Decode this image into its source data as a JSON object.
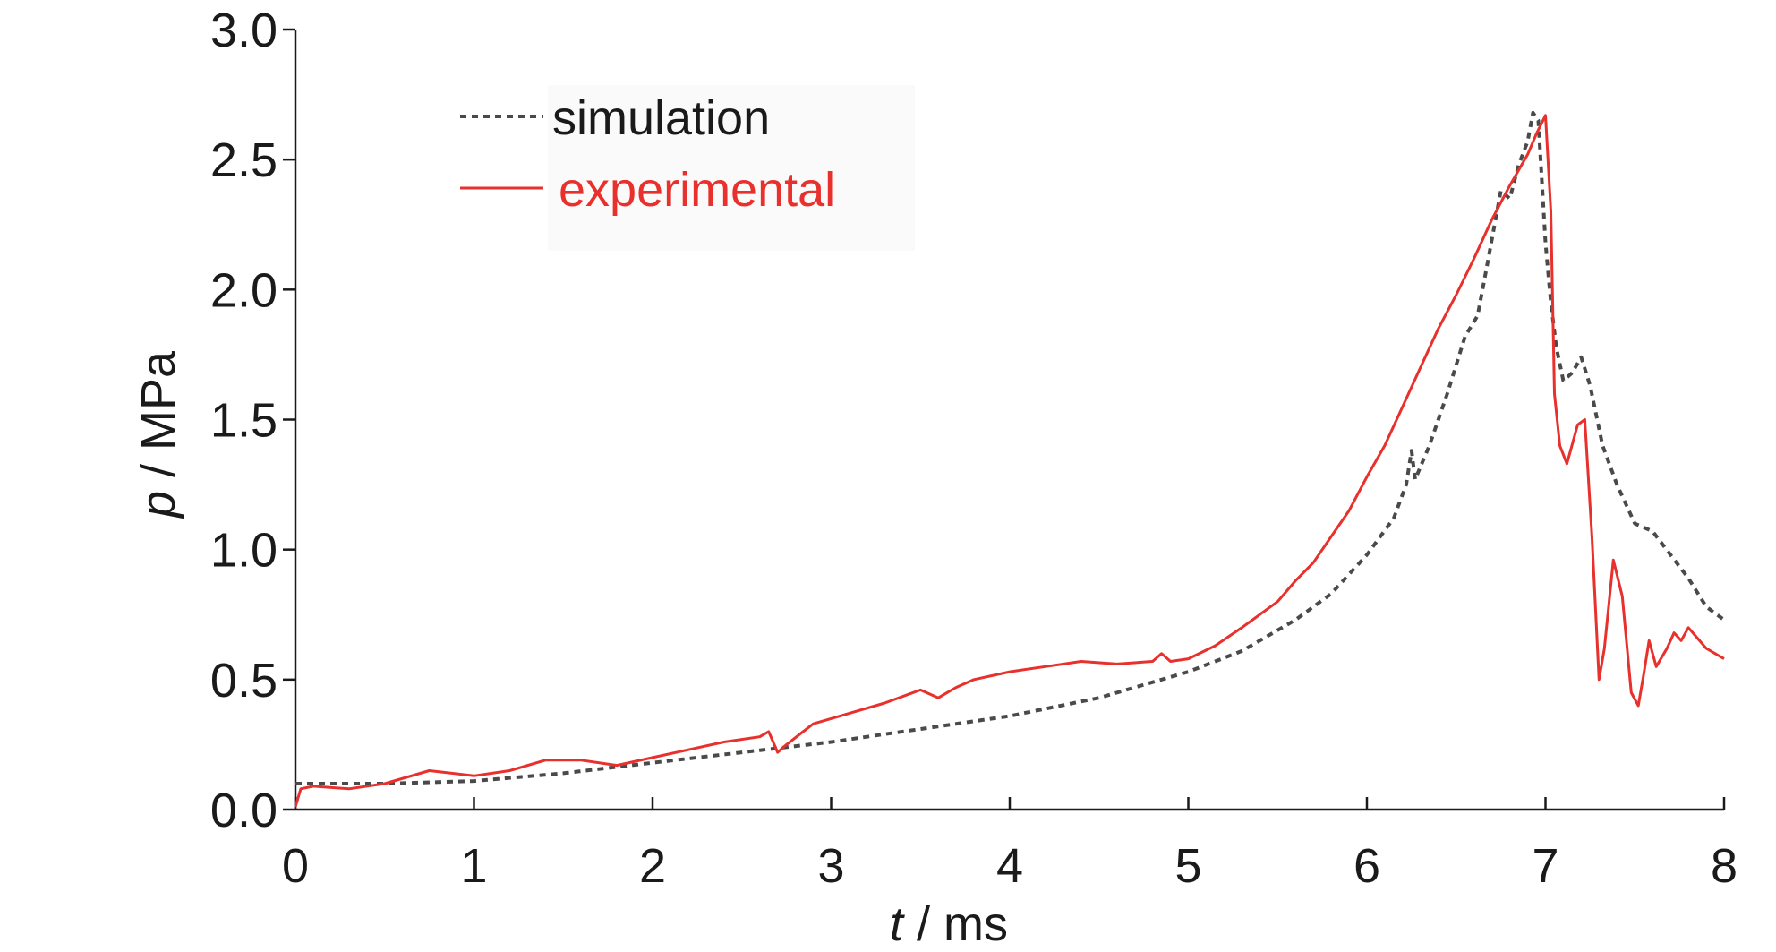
{
  "chart_data": {
    "type": "line",
    "xlabel": {
      "var": "t",
      "unit": " / ms"
    },
    "ylabel": {
      "var": "p",
      "unit": " / MPa"
    },
    "xlim": [
      0,
      8
    ],
    "ylim": [
      0,
      3
    ],
    "x_ticks": [
      "0",
      "1",
      "2",
      "3",
      "4",
      "5",
      "6",
      "7",
      "8"
    ],
    "y_ticks": [
      "0.0",
      "0.5",
      "1.0",
      "1.5",
      "2.0",
      "2.5",
      "3.0"
    ],
    "grid": false,
    "legend_position": "top-left",
    "series": [
      {
        "name": "simulation",
        "color": "#4a4a4a",
        "dash": "dotted",
        "points": [
          [
            0,
            0.1
          ],
          [
            0.5,
            0.1
          ],
          [
            1,
            0.11
          ],
          [
            1.5,
            0.14
          ],
          [
            2,
            0.18
          ],
          [
            2.5,
            0.22
          ],
          [
            3,
            0.26
          ],
          [
            3.5,
            0.31
          ],
          [
            4,
            0.36
          ],
          [
            4.5,
            0.43
          ],
          [
            5,
            0.53
          ],
          [
            5.3,
            0.61
          ],
          [
            5.6,
            0.73
          ],
          [
            5.8,
            0.83
          ],
          [
            6.0,
            0.98
          ],
          [
            6.15,
            1.12
          ],
          [
            6.22,
            1.25
          ],
          [
            6.25,
            1.38
          ],
          [
            6.27,
            1.27
          ],
          [
            6.35,
            1.4
          ],
          [
            6.45,
            1.6
          ],
          [
            6.55,
            1.82
          ],
          [
            6.62,
            1.9
          ],
          [
            6.68,
            2.12
          ],
          [
            6.75,
            2.38
          ],
          [
            6.8,
            2.35
          ],
          [
            6.85,
            2.48
          ],
          [
            6.9,
            2.57
          ],
          [
            6.93,
            2.68
          ],
          [
            6.96,
            2.65
          ],
          [
            7.0,
            2.18
          ],
          [
            7.03,
            1.95
          ],
          [
            7.06,
            1.78
          ],
          [
            7.1,
            1.65
          ],
          [
            7.15,
            1.68
          ],
          [
            7.2,
            1.74
          ],
          [
            7.25,
            1.63
          ],
          [
            7.32,
            1.4
          ],
          [
            7.4,
            1.25
          ],
          [
            7.5,
            1.1
          ],
          [
            7.6,
            1.07
          ],
          [
            7.7,
            0.98
          ],
          [
            7.8,
            0.89
          ],
          [
            7.9,
            0.78
          ],
          [
            8.0,
            0.73
          ]
        ]
      },
      {
        "name": "experimental",
        "color": "#e8302c",
        "dash": "solid",
        "points": [
          [
            0,
            0.01
          ],
          [
            0.03,
            0.08
          ],
          [
            0.1,
            0.09
          ],
          [
            0.3,
            0.08
          ],
          [
            0.5,
            0.1
          ],
          [
            0.75,
            0.15
          ],
          [
            1.0,
            0.13
          ],
          [
            1.2,
            0.15
          ],
          [
            1.4,
            0.19
          ],
          [
            1.6,
            0.19
          ],
          [
            1.8,
            0.17
          ],
          [
            2.0,
            0.2
          ],
          [
            2.2,
            0.23
          ],
          [
            2.4,
            0.26
          ],
          [
            2.6,
            0.28
          ],
          [
            2.65,
            0.3
          ],
          [
            2.7,
            0.22
          ],
          [
            2.75,
            0.25
          ],
          [
            2.9,
            0.33
          ],
          [
            3.1,
            0.37
          ],
          [
            3.3,
            0.41
          ],
          [
            3.5,
            0.46
          ],
          [
            3.6,
            0.43
          ],
          [
            3.7,
            0.47
          ],
          [
            3.8,
            0.5
          ],
          [
            4.0,
            0.53
          ],
          [
            4.2,
            0.55
          ],
          [
            4.4,
            0.57
          ],
          [
            4.6,
            0.56
          ],
          [
            4.8,
            0.57
          ],
          [
            4.85,
            0.6
          ],
          [
            4.9,
            0.57
          ],
          [
            5.0,
            0.58
          ],
          [
            5.15,
            0.63
          ],
          [
            5.3,
            0.7
          ],
          [
            5.5,
            0.8
          ],
          [
            5.6,
            0.88
          ],
          [
            5.7,
            0.95
          ],
          [
            5.8,
            1.05
          ],
          [
            5.9,
            1.15
          ],
          [
            6.0,
            1.28
          ],
          [
            6.1,
            1.4
          ],
          [
            6.2,
            1.55
          ],
          [
            6.3,
            1.7
          ],
          [
            6.4,
            1.85
          ],
          [
            6.5,
            1.98
          ],
          [
            6.6,
            2.12
          ],
          [
            6.7,
            2.27
          ],
          [
            6.8,
            2.4
          ],
          [
            6.9,
            2.52
          ],
          [
            6.95,
            2.6
          ],
          [
            7.0,
            2.67
          ],
          [
            7.03,
            2.3
          ],
          [
            7.05,
            1.6
          ],
          [
            7.08,
            1.4
          ],
          [
            7.12,
            1.33
          ],
          [
            7.18,
            1.48
          ],
          [
            7.22,
            1.5
          ],
          [
            7.26,
            1.05
          ],
          [
            7.3,
            0.5
          ],
          [
            7.33,
            0.62
          ],
          [
            7.38,
            0.96
          ],
          [
            7.43,
            0.82
          ],
          [
            7.48,
            0.45
          ],
          [
            7.52,
            0.4
          ],
          [
            7.55,
            0.52
          ],
          [
            7.58,
            0.65
          ],
          [
            7.62,
            0.55
          ],
          [
            7.68,
            0.62
          ],
          [
            7.72,
            0.68
          ],
          [
            7.76,
            0.65
          ],
          [
            7.8,
            0.7
          ],
          [
            7.85,
            0.66
          ],
          [
            7.9,
            0.62
          ],
          [
            8.0,
            0.58
          ]
        ]
      }
    ]
  }
}
